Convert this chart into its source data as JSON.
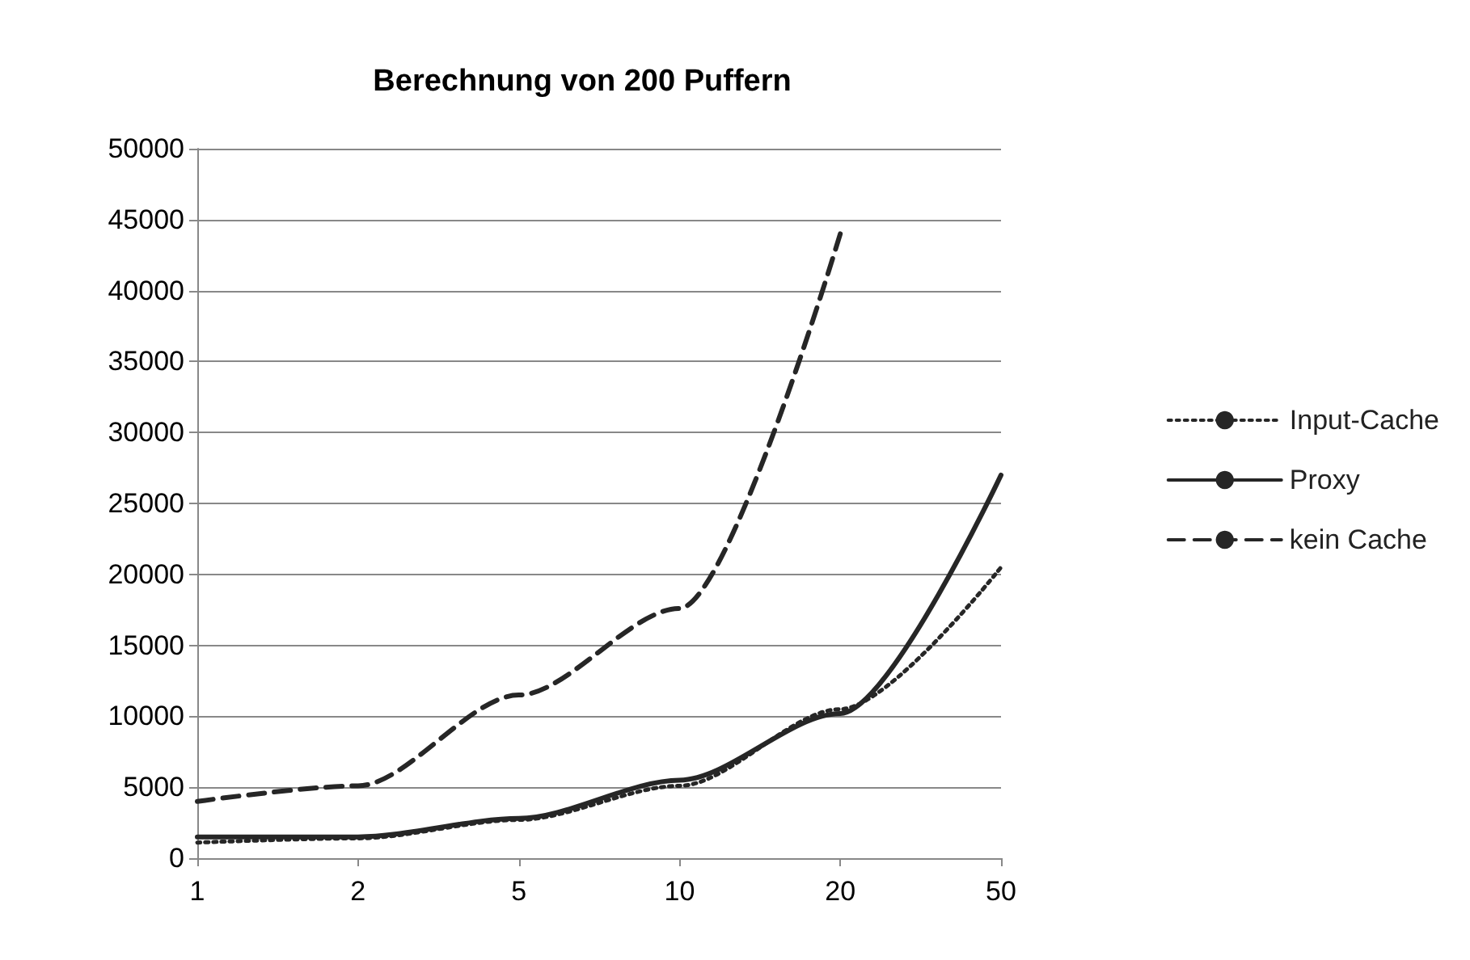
{
  "chart_data": {
    "type": "line",
    "title": "Berechnung von 200 Puffern",
    "categories": [
      "1",
      "2",
      "5",
      "10",
      "20",
      "50"
    ],
    "series": [
      {
        "name": "Input-Cache",
        "color": "#262626",
        "line_style": "dotted",
        "values": [
          1100,
          1400,
          2700,
          5100,
          10500,
          20500
        ]
      },
      {
        "name": "Proxy",
        "color": "#262626",
        "line_style": "solid",
        "values": [
          1500,
          1500,
          2800,
          5500,
          10200,
          27000
        ]
      },
      {
        "name": "kein Cache",
        "color": "#262626",
        "line_style": "dashed",
        "values": [
          4000,
          5100,
          11500,
          17600,
          44000,
          null
        ]
      }
    ],
    "ylim": [
      0,
      50000
    ],
    "yticks": [
      0,
      5000,
      10000,
      15000,
      20000,
      25000,
      30000,
      35000,
      40000,
      45000,
      50000
    ],
    "grid": "y",
    "legend": "right",
    "marker": "none"
  }
}
